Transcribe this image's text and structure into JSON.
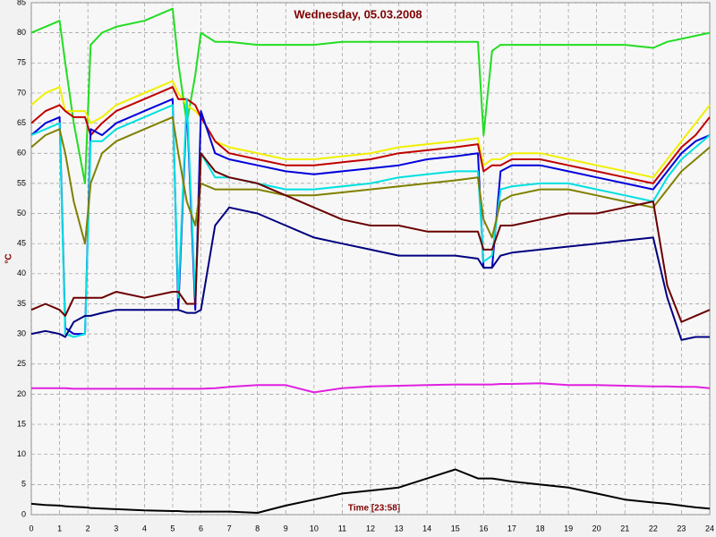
{
  "chart_data": {
    "type": "line",
    "title": "Wednesday, 05.03.2008",
    "ylabel": "°C",
    "xlabel": "Time [23:58]",
    "x": [
      0,
      0.5,
      1,
      1.2,
      1.5,
      1.9,
      2.1,
      2.5,
      3,
      4,
      5,
      5.2,
      5.5,
      5.8,
      6,
      6.5,
      7,
      8,
      9,
      10,
      11,
      12,
      13,
      14,
      15,
      15.8,
      16,
      16.3,
      16.6,
      17,
      18,
      19,
      20,
      21,
      22,
      22.5,
      23,
      23.5,
      24
    ],
    "xlim": [
      0,
      24
    ],
    "xticks": [
      0,
      1,
      2,
      3,
      4,
      5,
      6,
      7,
      8,
      9,
      10,
      11,
      12,
      13,
      14,
      15,
      16,
      17,
      18,
      19,
      20,
      21,
      22,
      23,
      24
    ],
    "ylim": [
      0,
      85
    ],
    "yticks": [
      0,
      5,
      10,
      15,
      20,
      25,
      30,
      35,
      40,
      45,
      50,
      55,
      60,
      65,
      70,
      75,
      80,
      85
    ],
    "grid": true,
    "series": [
      {
        "color": "#22dd22",
        "values": [
          80,
          81,
          82,
          75,
          65,
          55,
          78,
          80,
          81,
          82,
          84,
          75,
          65,
          73,
          80,
          78.5,
          78.5,
          78,
          78,
          78,
          78.5,
          78.5,
          78.5,
          78.5,
          78.5,
          78.5,
          63,
          77,
          78,
          78,
          78,
          78,
          78,
          78,
          77.5,
          78.5,
          79,
          79.5,
          80
        ]
      },
      {
        "color": "#f0f000",
        "values": [
          68,
          70,
          71,
          67,
          67,
          67,
          65,
          66,
          68,
          70,
          72,
          70,
          68,
          67,
          66,
          62,
          61,
          60,
          59,
          59,
          59.5,
          60,
          61,
          61.5,
          62,
          62.5,
          58,
          59,
          59,
          60,
          60,
          59,
          58,
          57,
          56,
          59,
          62,
          65,
          68
        ]
      },
      {
        "color": "#c00000",
        "values": [
          65,
          67,
          68,
          67,
          66,
          66,
          63,
          65,
          67,
          69,
          71,
          69,
          69,
          68,
          66,
          62,
          60,
          59,
          58,
          58,
          58.5,
          59,
          60,
          60.5,
          61,
          61.5,
          57,
          58,
          58,
          59,
          59,
          58,
          57,
          56,
          55,
          58,
          61,
          63,
          66
        ]
      },
      {
        "color": "#0000dd",
        "values": [
          63,
          65,
          66,
          31,
          30,
          30,
          64,
          63,
          65,
          67,
          69,
          34,
          68,
          34,
          67,
          60,
          59,
          58,
          57,
          56.5,
          57,
          57.5,
          58,
          59,
          59.5,
          60,
          41,
          41,
          57,
          58,
          58,
          57,
          56,
          55,
          54,
          57,
          60,
          62,
          63
        ]
      },
      {
        "color": "#00e0e0",
        "values": [
          63,
          64,
          65,
          30,
          29.5,
          30,
          62,
          62,
          64,
          66,
          68,
          36,
          69,
          36,
          60,
          56,
          56,
          55,
          54,
          54,
          54.5,
          55,
          56,
          56.5,
          57,
          57,
          42,
          43,
          54,
          54.5,
          55,
          55,
          54,
          53,
          52,
          56,
          59,
          61,
          63
        ]
      },
      {
        "color": "#808000",
        "values": [
          61,
          63,
          64,
          60,
          52,
          45,
          55,
          60,
          62,
          64,
          66,
          60,
          52,
          48,
          55,
          54,
          54,
          54,
          53,
          53,
          53.5,
          54,
          54.5,
          55,
          55.5,
          56,
          49,
          46,
          52,
          53,
          54,
          54,
          53,
          52,
          51,
          54,
          57,
          59,
          61
        ]
      },
      {
        "color": "#6b0000",
        "values": [
          34,
          35,
          34,
          33,
          36,
          36,
          36,
          36,
          37,
          36,
          37,
          37,
          35,
          35,
          60,
          57,
          56,
          55,
          53,
          51,
          49,
          48,
          48,
          47,
          47,
          47,
          44,
          44,
          48,
          48,
          49,
          50,
          50,
          51,
          52,
          38,
          32,
          33,
          34
        ]
      },
      {
        "color": "#000080",
        "values": [
          30,
          30.5,
          30,
          29.5,
          32,
          33,
          33,
          33.5,
          34,
          34,
          34,
          34,
          33.5,
          33.5,
          34,
          48,
          51,
          50,
          48,
          46,
          45,
          44,
          43,
          43,
          43,
          42.5,
          41,
          41,
          43,
          43.5,
          44,
          44.5,
          45,
          45.5,
          46,
          36,
          29,
          29.5,
          29.5
        ]
      },
      {
        "color": "#e020e0",
        "values": [
          21,
          21,
          21,
          21,
          20.9,
          20.9,
          20.9,
          20.9,
          20.9,
          20.9,
          20.9,
          20.9,
          20.9,
          20.9,
          20.9,
          21,
          21.2,
          21.5,
          21.5,
          20.3,
          21,
          21.3,
          21.4,
          21.5,
          21.6,
          21.6,
          21.6,
          21.6,
          21.7,
          21.7,
          21.8,
          21.5,
          21.5,
          21.4,
          21.3,
          21.3,
          21.2,
          21.2,
          21
        ]
      },
      {
        "color": "#000000",
        "values": [
          1.8,
          1.6,
          1.5,
          1.4,
          1.3,
          1.2,
          1.1,
          1,
          0.9,
          0.7,
          0.6,
          0.6,
          0.5,
          0.5,
          0.5,
          0.5,
          0.5,
          0.3,
          1.5,
          2.5,
          3.5,
          4,
          4.5,
          6,
          7.5,
          6,
          6,
          6,
          5.8,
          5.5,
          5,
          4.5,
          3.5,
          2.5,
          2,
          1.8,
          1.5,
          1.2,
          1
        ]
      }
    ]
  }
}
